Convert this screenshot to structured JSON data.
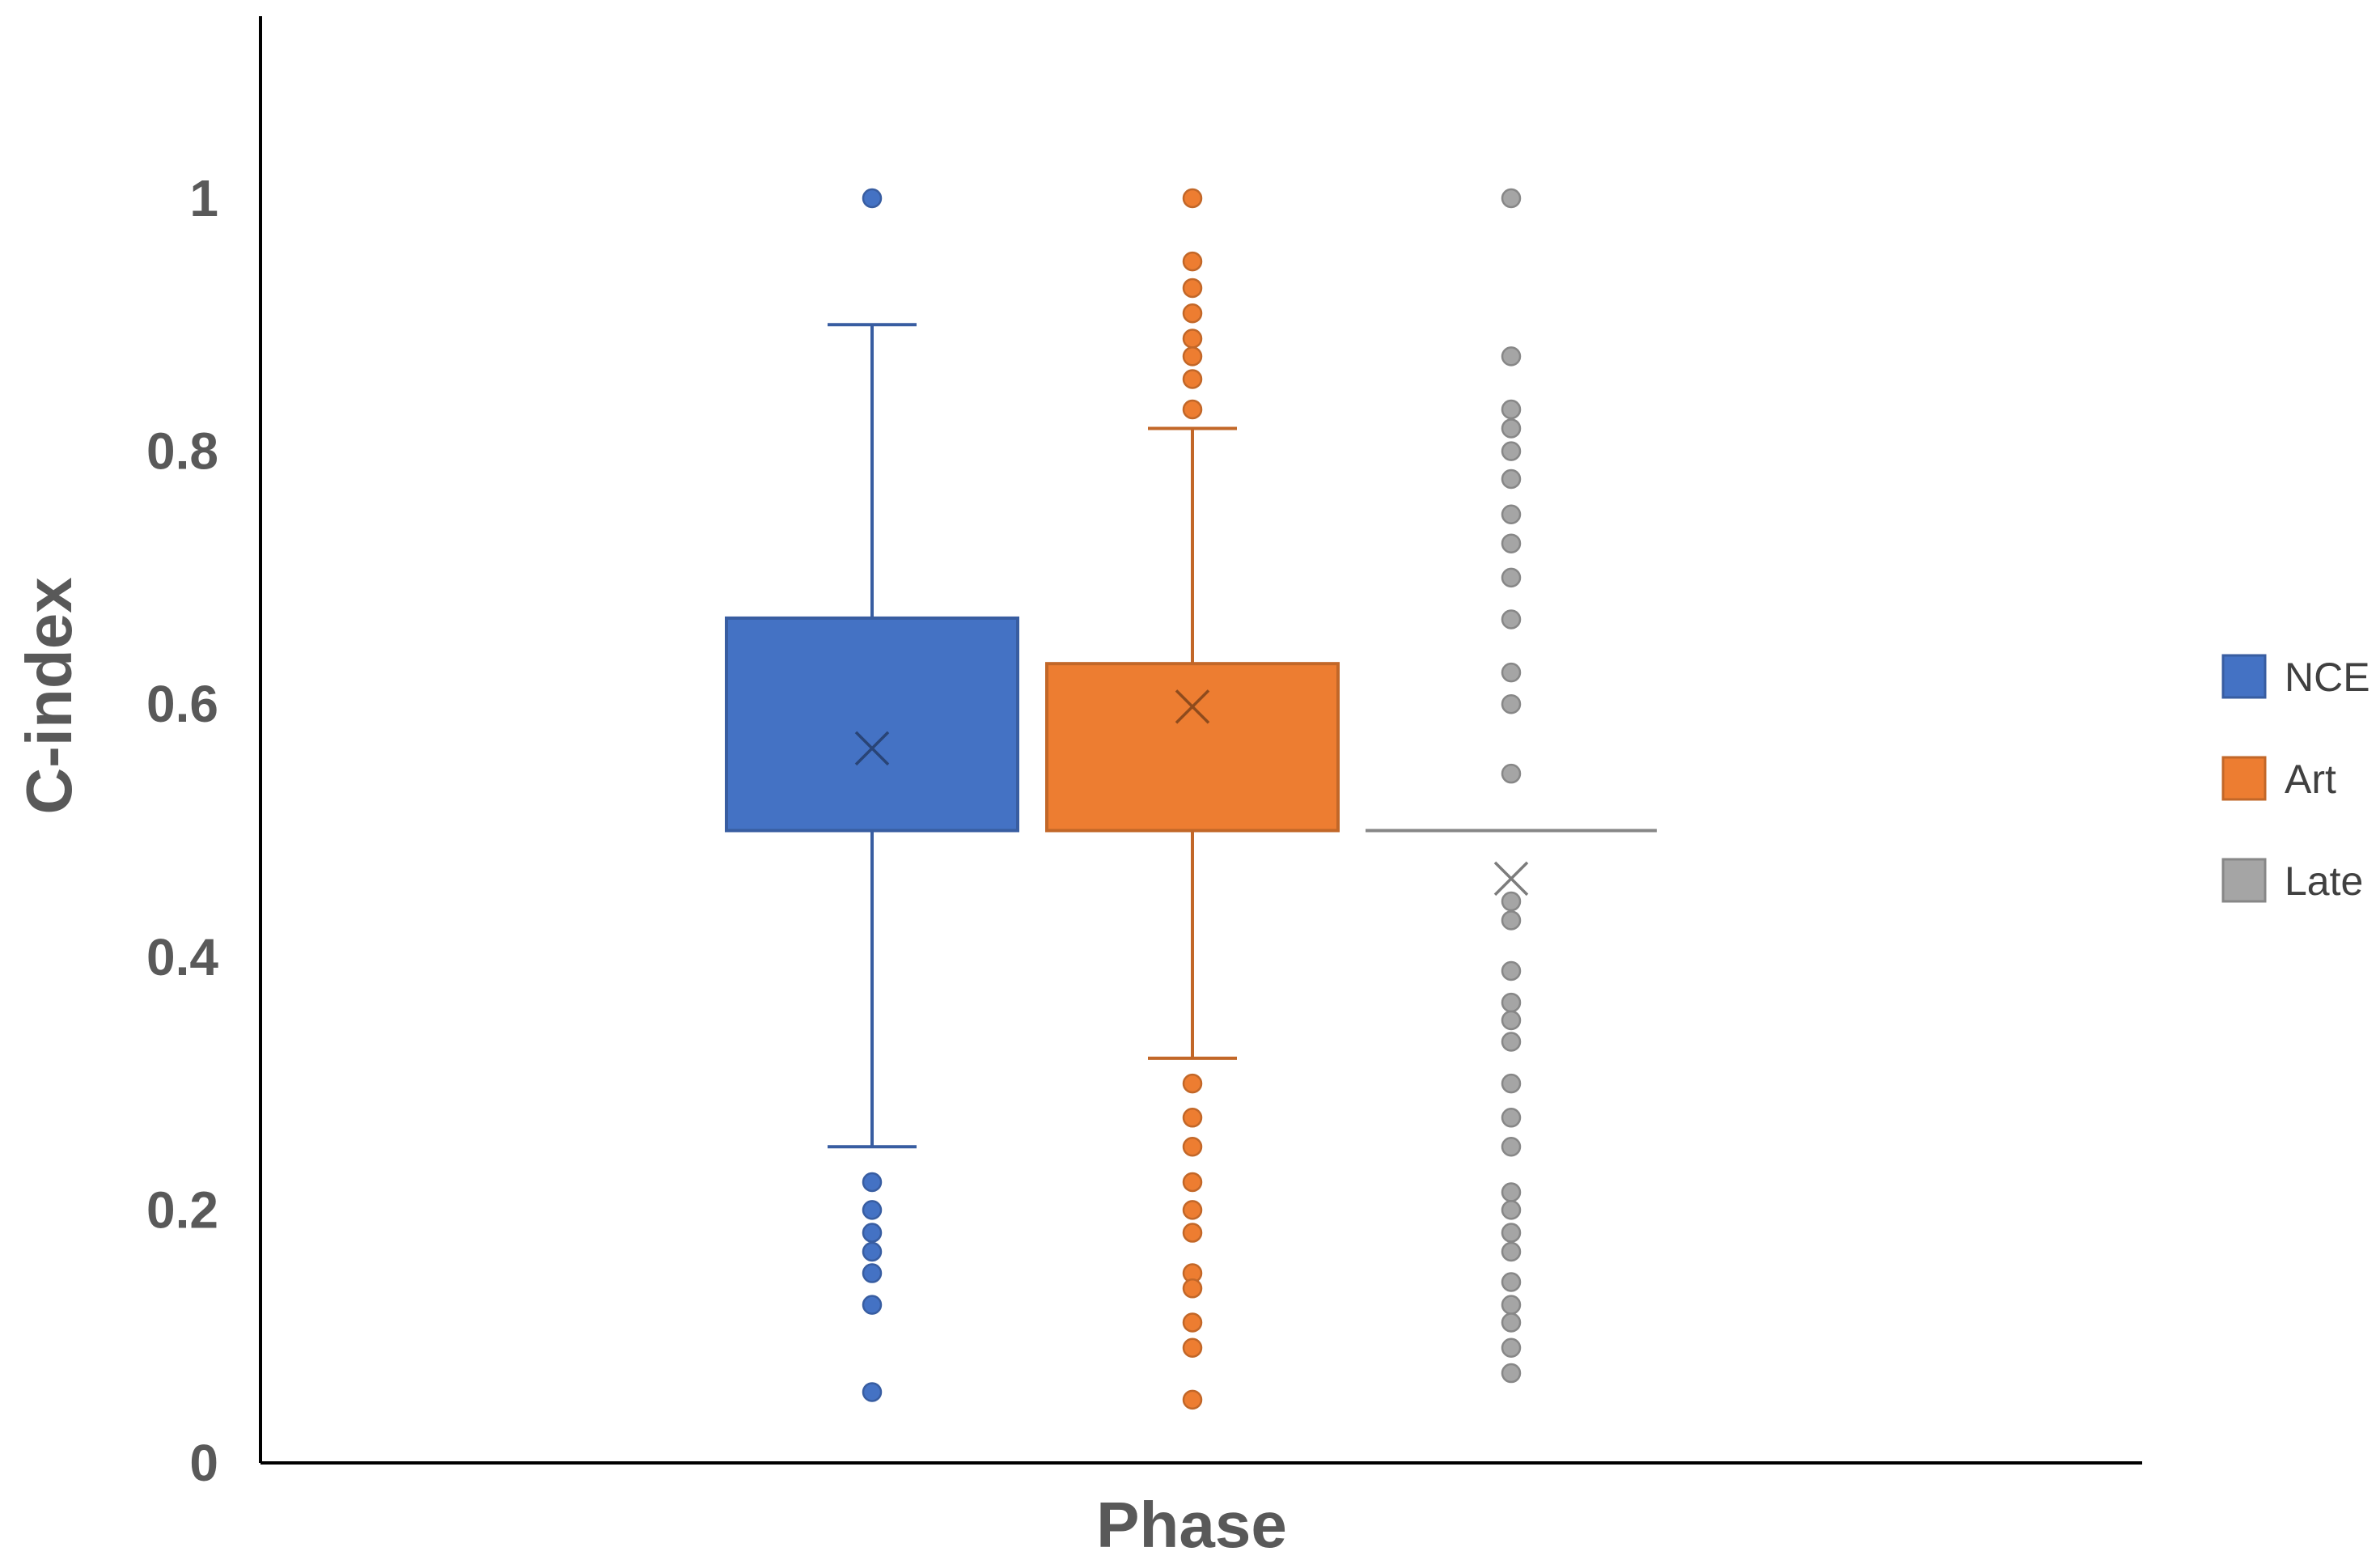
{
  "chart_data": {
    "type": "box",
    "title": "",
    "xlabel": "Phase",
    "ylabel": "C-index",
    "ylim": [
      0,
      1.15
    ],
    "yticks": [
      0,
      0.2,
      0.4,
      0.6,
      0.8,
      1
    ],
    "ytick_labels": [
      "0",
      "0.2",
      "0.4",
      "0.6",
      "0.8",
      "1"
    ],
    "grid": false,
    "legend_position": "right",
    "series": [
      {
        "name": "NCE",
        "color": "#4472C4",
        "whisker_low": 0.25,
        "q1": 0.5,
        "median": 0.5,
        "q3": 0.668,
        "whisker_high": 0.9,
        "mean": 0.565,
        "outliers": [
          1.0,
          0.222,
          0.2,
          0.182,
          0.167,
          0.15,
          0.125,
          0.056
        ]
      },
      {
        "name": "Art",
        "color": "#ED7D31",
        "whisker_low": 0.32,
        "q1": 0.5,
        "median": 0.5,
        "q3": 0.632,
        "whisker_high": 0.818,
        "mean": 0.598,
        "outliers": [
          1.0,
          0.95,
          0.929,
          0.909,
          0.889,
          0.875,
          0.857,
          0.833,
          0.3,
          0.273,
          0.25,
          0.222,
          0.2,
          0.182,
          0.15,
          0.138,
          0.111,
          0.091,
          0.05
        ]
      },
      {
        "name": "Late",
        "color": "#A5A5A5",
        "whisker_low": 0.5,
        "q1": 0.5,
        "median": 0.5,
        "q3": 0.5,
        "whisker_high": 0.5,
        "mean": 0.462,
        "outliers": [
          1.0,
          0.875,
          0.833,
          0.818,
          0.8,
          0.778,
          0.75,
          0.727,
          0.7,
          0.667,
          0.625,
          0.6,
          0.545,
          0.444,
          0.429,
          0.389,
          0.364,
          0.35,
          0.333,
          0.3,
          0.273,
          0.25,
          0.214,
          0.2,
          0.182,
          0.167,
          0.143,
          0.125,
          0.111,
          0.091,
          0.071
        ]
      }
    ]
  }
}
